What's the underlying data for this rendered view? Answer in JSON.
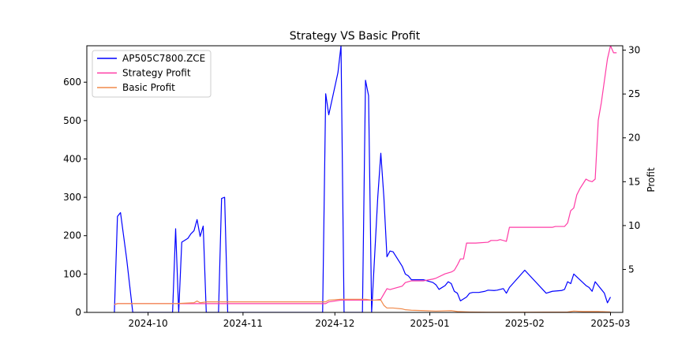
{
  "chart_data": {
    "type": "line",
    "title": "Strategy VS Basic Profit",
    "xlabel": "",
    "ylabel_left": "",
    "ylabel_right": "Profit",
    "x_ticks": [
      "2024-10",
      "2024-11",
      "2024-12",
      "2025-01",
      "2025-02",
      "2025-03"
    ],
    "y_left_ticks": [
      0,
      100,
      200,
      300,
      400,
      500,
      600
    ],
    "y_right_ticks": [
      5,
      10,
      15,
      20,
      25,
      30
    ],
    "ylim_left": [
      0,
      695
    ],
    "ylim_right": [
      0.1,
      30.5
    ],
    "xlim": [
      "2024-09-11",
      "2025-03-05"
    ],
    "legend_position": "upper-left",
    "series": [
      {
        "name": "AP505C7800.ZCE",
        "axis": "left",
        "color": "#0000ff",
        "points": [
          [
            "2024-09-20",
            0
          ],
          [
            "2024-09-21",
            250
          ],
          [
            "2024-09-22",
            260
          ],
          [
            "2024-09-23",
            200
          ],
          [
            "2024-09-24",
            140
          ],
          [
            "2024-09-25",
            70
          ],
          [
            "2024-09-26",
            0
          ],
          [
            "2024-09-27",
            0
          ],
          [
            "2024-09-30",
            0
          ],
          [
            "2024-10-08",
            0
          ],
          [
            "2024-10-09",
            0
          ],
          [
            "2024-10-10",
            218
          ],
          [
            "2024-10-11",
            0
          ],
          [
            "2024-10-12",
            183
          ],
          [
            "2024-10-14",
            193
          ],
          [
            "2024-10-15",
            205
          ],
          [
            "2024-10-16",
            213
          ],
          [
            "2024-10-17",
            242
          ],
          [
            "2024-10-18",
            198
          ],
          [
            "2024-10-19",
            225
          ],
          [
            "2024-10-20",
            0
          ],
          [
            "2024-10-21",
            0
          ],
          [
            "2024-10-24",
            0
          ],
          [
            "2024-10-25",
            297
          ],
          [
            "2024-10-26",
            300
          ],
          [
            "2024-10-27",
            0
          ],
          [
            "2024-10-28",
            0
          ],
          [
            "2024-11-05",
            0
          ],
          [
            "2024-11-27",
            0
          ],
          [
            "2024-11-28",
            570
          ],
          [
            "2024-11-29",
            515
          ],
          [
            "2024-12-02",
            625
          ],
          [
            "2024-12-03",
            695
          ],
          [
            "2024-12-04",
            0
          ],
          [
            "2024-12-05",
            0
          ],
          [
            "2024-12-10",
            0
          ],
          [
            "2024-12-11",
            605
          ],
          [
            "2024-12-12",
            565
          ],
          [
            "2024-12-13",
            0
          ],
          [
            "2024-12-14",
            150
          ],
          [
            "2024-12-15",
            300
          ],
          [
            "2024-12-16",
            415
          ],
          [
            "2024-12-17",
            300
          ],
          [
            "2024-12-18",
            145
          ],
          [
            "2024-12-19",
            160
          ],
          [
            "2024-12-20",
            158
          ],
          [
            "2024-12-23",
            120
          ],
          [
            "2024-12-24",
            100
          ],
          [
            "2024-12-25",
            95
          ],
          [
            "2024-12-26",
            85
          ],
          [
            "2024-12-27",
            85
          ],
          [
            "2024-12-30",
            85
          ],
          [
            "2025-01-02",
            78
          ],
          [
            "2025-01-03",
            72
          ],
          [
            "2025-01-04",
            60
          ],
          [
            "2025-01-06",
            70
          ],
          [
            "2025-01-07",
            80
          ],
          [
            "2025-01-08",
            75
          ],
          [
            "2025-01-09",
            55
          ],
          [
            "2025-01-10",
            50
          ],
          [
            "2025-01-11",
            30
          ],
          [
            "2025-01-13",
            40
          ],
          [
            "2025-01-14",
            50
          ],
          [
            "2025-01-15",
            52
          ],
          [
            "2025-01-17",
            52
          ],
          [
            "2025-01-19",
            55
          ],
          [
            "2025-01-20",
            58
          ],
          [
            "2025-01-22",
            57
          ],
          [
            "2025-01-23",
            58
          ],
          [
            "2025-01-24",
            60
          ],
          [
            "2025-01-25",
            62
          ],
          [
            "2025-01-26",
            50
          ],
          [
            "2025-01-27",
            65
          ],
          [
            "2025-02-01",
            110
          ],
          [
            "2025-02-08",
            50
          ],
          [
            "2025-02-10",
            55
          ],
          [
            "2025-02-13",
            57
          ],
          [
            "2025-02-14",
            60
          ],
          [
            "2025-02-15",
            80
          ],
          [
            "2025-02-16",
            75
          ],
          [
            "2025-02-17",
            100
          ],
          [
            "2025-02-21",
            70
          ],
          [
            "2025-02-22",
            65
          ],
          [
            "2025-02-23",
            55
          ],
          [
            "2025-02-24",
            80
          ],
          [
            "2025-02-25",
            70
          ],
          [
            "2025-02-27",
            50
          ],
          [
            "2025-02-28",
            25
          ],
          [
            "2025-03-01",
            40
          ]
        ]
      },
      {
        "name": "Strategy Profit",
        "axis": "right",
        "color": "#ff3ba6",
        "points": [
          [
            "2024-09-20",
            1.0
          ],
          [
            "2024-09-21",
            1.1
          ],
          [
            "2024-09-24",
            1.1
          ],
          [
            "2024-10-15",
            1.1
          ],
          [
            "2024-10-16",
            1.1
          ],
          [
            "2024-11-28",
            1.1
          ],
          [
            "2024-11-29",
            1.3
          ],
          [
            "2024-12-03",
            1.5
          ],
          [
            "2024-12-10",
            1.5
          ],
          [
            "2024-12-14",
            1.5
          ],
          [
            "2024-12-16",
            1.6
          ],
          [
            "2024-12-18",
            2.8
          ],
          [
            "2024-12-19",
            2.7
          ],
          [
            "2024-12-20",
            2.8
          ],
          [
            "2024-12-23",
            3.1
          ],
          [
            "2024-12-24",
            3.5
          ],
          [
            "2024-12-25",
            3.6
          ],
          [
            "2024-12-26",
            3.7
          ],
          [
            "2024-12-30",
            3.7
          ],
          [
            "2025-01-02",
            3.9
          ],
          [
            "2025-01-03",
            4.0
          ],
          [
            "2025-01-06",
            4.5
          ],
          [
            "2025-01-08",
            4.7
          ],
          [
            "2025-01-09",
            4.9
          ],
          [
            "2025-01-10",
            5.5
          ],
          [
            "2025-01-11",
            6.2
          ],
          [
            "2025-01-12",
            6.2
          ],
          [
            "2025-01-13",
            8.0
          ],
          [
            "2025-01-16",
            8.0
          ],
          [
            "2025-01-20",
            8.1
          ],
          [
            "2025-01-21",
            8.3
          ],
          [
            "2025-01-23",
            8.3
          ],
          [
            "2025-01-24",
            8.4
          ],
          [
            "2025-01-26",
            8.2
          ],
          [
            "2025-01-27",
            9.8
          ],
          [
            "2025-02-07",
            9.8
          ],
          [
            "2025-02-10",
            9.8
          ],
          [
            "2025-02-11",
            9.9
          ],
          [
            "2025-02-14",
            9.9
          ],
          [
            "2025-02-15",
            10.3
          ],
          [
            "2025-02-16",
            11.7
          ],
          [
            "2025-02-17",
            12.0
          ],
          [
            "2025-02-18",
            13.5
          ],
          [
            "2025-02-19",
            14.2
          ],
          [
            "2025-02-21",
            15.3
          ],
          [
            "2025-02-22",
            15.1
          ],
          [
            "2025-02-23",
            15.0
          ],
          [
            "2025-02-24",
            15.3
          ],
          [
            "2025-02-25",
            22.0
          ],
          [
            "2025-02-26",
            24.0
          ],
          [
            "2025-02-27",
            26.5
          ],
          [
            "2025-02-28",
            29.0
          ],
          [
            "2025-03-01",
            30.5
          ],
          [
            "2025-03-02",
            29.7
          ],
          [
            "2025-03-03",
            29.7
          ]
        ]
      },
      {
        "name": "Basic Profit",
        "axis": "right",
        "color": "#f08a4b",
        "points": [
          [
            "2024-09-20",
            1.0
          ],
          [
            "2024-09-21",
            1.1
          ],
          [
            "2024-09-24",
            1.1
          ],
          [
            "2024-10-10",
            1.1
          ],
          [
            "2024-10-16",
            1.2
          ],
          [
            "2024-10-17",
            1.4
          ],
          [
            "2024-10-18",
            1.2
          ],
          [
            "2024-10-20",
            1.3
          ],
          [
            "2024-10-22",
            1.3
          ],
          [
            "2024-11-28",
            1.3
          ],
          [
            "2024-11-29",
            1.5
          ],
          [
            "2024-12-03",
            1.6
          ],
          [
            "2024-12-11",
            1.6
          ],
          [
            "2024-12-13",
            1.5
          ],
          [
            "2024-12-16",
            1.5
          ],
          [
            "2024-12-17",
            0.9
          ],
          [
            "2024-12-18",
            0.6
          ],
          [
            "2024-12-20",
            0.6
          ],
          [
            "2024-12-23",
            0.5
          ],
          [
            "2024-12-24",
            0.4
          ],
          [
            "2024-12-26",
            0.35
          ],
          [
            "2024-12-30",
            0.3
          ],
          [
            "2025-01-03",
            0.25
          ],
          [
            "2025-01-08",
            0.3
          ],
          [
            "2025-01-10",
            0.2
          ],
          [
            "2025-01-14",
            0.15
          ],
          [
            "2025-01-20",
            0.12
          ],
          [
            "2025-02-01",
            0.12
          ],
          [
            "2025-02-15",
            0.15
          ],
          [
            "2025-02-17",
            0.25
          ],
          [
            "2025-02-20",
            0.2
          ],
          [
            "2025-02-25",
            0.2
          ],
          [
            "2025-03-01",
            0.15
          ]
        ]
      }
    ]
  }
}
